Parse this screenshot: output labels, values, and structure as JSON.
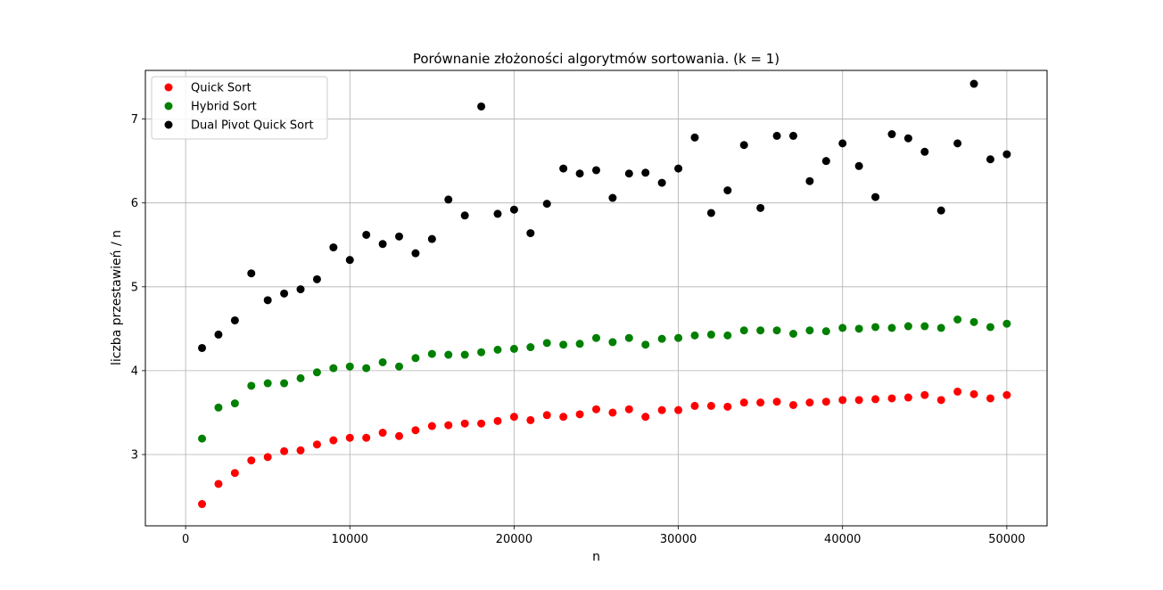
{
  "chart_data": {
    "type": "scatter",
    "title": "Porównanie złożoności algorytmów sortowania. (k = 1)",
    "xlabel": "n",
    "ylabel": "liczba przestawień / n",
    "xlim": [
      -2450,
      52450
    ],
    "ylim": [
      2.15,
      7.58
    ],
    "xticks": [
      0,
      10000,
      20000,
      30000,
      40000,
      50000
    ],
    "xtick_labels": [
      "0",
      "10000",
      "20000",
      "30000",
      "40000",
      "50000"
    ],
    "yticks": [
      3,
      4,
      5,
      6,
      7
    ],
    "ytick_labels": [
      "3",
      "4",
      "5",
      "6",
      "7"
    ],
    "grid": true,
    "legend_position": "top-left",
    "x": [
      1000,
      2000,
      3000,
      4000,
      5000,
      6000,
      7000,
      8000,
      9000,
      10000,
      11000,
      12000,
      13000,
      14000,
      15000,
      16000,
      17000,
      18000,
      19000,
      20000,
      21000,
      22000,
      23000,
      24000,
      25000,
      26000,
      27000,
      28000,
      29000,
      30000,
      31000,
      32000,
      33000,
      34000,
      35000,
      36000,
      37000,
      38000,
      39000,
      40000,
      41000,
      42000,
      43000,
      44000,
      45000,
      46000,
      47000,
      48000,
      49000,
      50000
    ],
    "series": [
      {
        "name": "Quick Sort",
        "color": "#ff0000",
        "values": [
          2.41,
          2.65,
          2.78,
          2.93,
          2.97,
          3.04,
          3.05,
          3.12,
          3.17,
          3.2,
          3.2,
          3.26,
          3.22,
          3.29,
          3.34,
          3.35,
          3.37,
          3.37,
          3.4,
          3.45,
          3.41,
          3.47,
          3.45,
          3.48,
          3.54,
          3.5,
          3.54,
          3.45,
          3.53,
          3.53,
          3.58,
          3.58,
          3.57,
          3.62,
          3.62,
          3.63,
          3.59,
          3.62,
          3.63,
          3.65,
          3.65,
          3.66,
          3.67,
          3.68,
          3.71,
          3.65,
          3.75,
          3.72,
          3.67,
          3.71
        ]
      },
      {
        "name": "Hybrid Sort",
        "color": "#008000",
        "values": [
          3.19,
          3.56,
          3.61,
          3.82,
          3.85,
          3.85,
          3.91,
          3.98,
          4.03,
          4.05,
          4.03,
          4.1,
          4.05,
          4.15,
          4.2,
          4.19,
          4.19,
          4.22,
          4.25,
          4.26,
          4.28,
          4.33,
          4.31,
          4.32,
          4.39,
          4.34,
          4.39,
          4.31,
          4.38,
          4.39,
          4.42,
          4.43,
          4.42,
          4.48,
          4.48,
          4.48,
          4.44,
          4.48,
          4.47,
          4.51,
          4.5,
          4.52,
          4.51,
          4.53,
          4.53,
          4.51,
          4.61,
          4.58,
          4.52,
          4.56
        ]
      },
      {
        "name": "Dual Pivot Quick Sort",
        "color": "#000000",
        "values": [
          4.27,
          4.43,
          4.6,
          5.16,
          4.84,
          4.92,
          4.97,
          5.09,
          5.47,
          5.32,
          5.62,
          5.51,
          5.6,
          5.4,
          5.57,
          6.04,
          5.85,
          7.15,
          5.87,
          5.92,
          5.64,
          5.99,
          6.41,
          6.35,
          6.39,
          6.06,
          6.35,
          6.36,
          6.24,
          6.41,
          6.78,
          5.88,
          6.15,
          6.69,
          5.94,
          6.8,
          6.8,
          6.26,
          6.5,
          6.71,
          6.44,
          6.07,
          6.82,
          6.77,
          6.61,
          5.91,
          6.71,
          7.42,
          6.52,
          6.58
        ]
      }
    ]
  }
}
